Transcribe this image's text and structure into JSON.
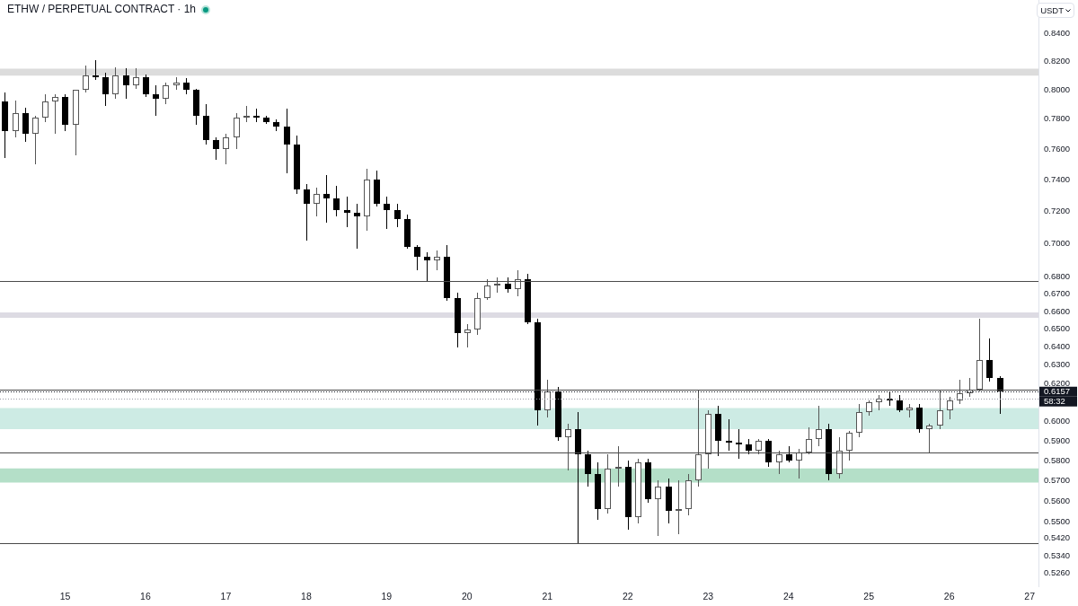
{
  "chart_data": {
    "type": "candlestick",
    "title": "ETHW / PERPETUAL CONTRACT · 1h",
    "ylabel": "USDT",
    "x": [
      14.25,
      14.375,
      14.5,
      14.625,
      14.75,
      14.875,
      15,
      15.125,
      15.25,
      15.375,
      15.5,
      15.625,
      15.75,
      15.875,
      16,
      16.125,
      16.25,
      16.375,
      16.5,
      16.625,
      16.75,
      16.875,
      17,
      17.125,
      17.25,
      17.375,
      17.5,
      17.625,
      17.75,
      17.875,
      18,
      18.125,
      18.25,
      18.375,
      18.5,
      18.625,
      18.75,
      18.875,
      19,
      19.125,
      19.25,
      19.375,
      19.5,
      19.625,
      19.75,
      19.875,
      20,
      20.125,
      20.25,
      20.375,
      20.5,
      20.625,
      20.75,
      20.875,
      21,
      21.125,
      21.25,
      21.375,
      21.5,
      21.625,
      21.75,
      21.875,
      22,
      22.125,
      22.25,
      22.375,
      22.5,
      22.625,
      22.75,
      22.875,
      23,
      23.125,
      23.25,
      23.375,
      23.5,
      23.625,
      23.75,
      23.875,
      24,
      24.125,
      24.25,
      24.375,
      24.5,
      24.625,
      24.75,
      24.875,
      25,
      25.125,
      25.25,
      25.375,
      25.5,
      25.625,
      25.75,
      25.875,
      26,
      26.125,
      26.25,
      26.375,
      26.5,
      26.625
    ],
    "ohlc": [
      [
        0.792,
        0.798,
        0.754,
        0.772
      ],
      [
        0.772,
        0.793,
        0.768,
        0.784
      ],
      [
        0.784,
        0.788,
        0.765,
        0.77
      ],
      [
        0.77,
        0.782,
        0.75,
        0.781
      ],
      [
        0.781,
        0.797,
        0.778,
        0.792
      ],
      [
        0.792,
        0.797,
        0.77,
        0.795
      ],
      [
        0.795,
        0.797,
        0.772,
        0.776
      ],
      [
        0.776,
        0.8,
        0.756,
        0.8
      ],
      [
        0.8,
        0.817,
        0.798,
        0.81
      ],
      [
        0.81,
        0.821,
        0.807,
        0.809
      ],
      [
        0.809,
        0.812,
        0.789,
        0.797
      ],
      [
        0.797,
        0.816,
        0.794,
        0.81
      ],
      [
        0.81,
        0.815,
        0.794,
        0.803
      ],
      [
        0.803,
        0.815,
        0.801,
        0.809
      ],
      [
        0.809,
        0.811,
        0.795,
        0.797
      ],
      [
        0.797,
        0.803,
        0.782,
        0.794
      ],
      [
        0.794,
        0.805,
        0.79,
        0.803
      ],
      [
        0.803,
        0.809,
        0.8,
        0.805
      ],
      [
        0.805,
        0.808,
        0.797,
        0.8
      ],
      [
        0.8,
        0.801,
        0.776,
        0.782
      ],
      [
        0.782,
        0.79,
        0.763,
        0.766
      ],
      [
        0.766,
        0.768,
        0.753,
        0.76
      ],
      [
        0.76,
        0.77,
        0.75,
        0.768
      ],
      [
        0.768,
        0.784,
        0.76,
        0.781
      ],
      [
        0.781,
        0.789,
        0.778,
        0.782
      ],
      [
        0.782,
        0.787,
        0.778,
        0.781
      ],
      [
        0.781,
        0.782,
        0.777,
        0.778
      ],
      [
        0.778,
        0.78,
        0.772,
        0.775
      ],
      [
        0.775,
        0.787,
        0.744,
        0.763
      ],
      [
        0.763,
        0.769,
        0.731,
        0.734
      ],
      [
        0.734,
        0.737,
        0.702,
        0.725
      ],
      [
        0.725,
        0.735,
        0.717,
        0.731
      ],
      [
        0.731,
        0.743,
        0.713,
        0.728
      ],
      [
        0.728,
        0.736,
        0.717,
        0.721
      ],
      [
        0.721,
        0.729,
        0.71,
        0.719
      ],
      [
        0.719,
        0.725,
        0.697,
        0.717
      ],
      [
        0.717,
        0.747,
        0.708,
        0.74
      ],
      [
        0.74,
        0.746,
        0.723,
        0.725
      ],
      [
        0.725,
        0.729,
        0.709,
        0.721
      ],
      [
        0.721,
        0.725,
        0.71,
        0.715
      ],
      [
        0.715,
        0.718,
        0.697,
        0.698
      ],
      [
        0.698,
        0.699,
        0.684,
        0.692
      ],
      [
        0.692,
        0.695,
        0.677,
        0.69
      ],
      [
        0.69,
        0.696,
        0.684,
        0.692
      ],
      [
        0.692,
        0.699,
        0.666,
        0.668
      ],
      [
        0.668,
        0.671,
        0.64,
        0.648
      ],
      [
        0.648,
        0.653,
        0.64,
        0.65
      ],
      [
        0.65,
        0.671,
        0.647,
        0.668
      ],
      [
        0.668,
        0.679,
        0.667,
        0.675
      ],
      [
        0.675,
        0.68,
        0.671,
        0.676
      ],
      [
        0.676,
        0.68,
        0.671,
        0.673
      ],
      [
        0.673,
        0.684,
        0.669,
        0.679
      ],
      [
        0.679,
        0.682,
        0.653,
        0.654
      ],
      [
        0.654,
        0.656,
        0.598,
        0.606
      ],
      [
        0.606,
        0.622,
        0.602,
        0.616
      ],
      [
        0.616,
        0.618,
        0.59,
        0.592
      ],
      [
        0.592,
        0.599,
        0.575,
        0.596
      ],
      [
        0.596,
        0.605,
        0.54,
        0.583
      ],
      [
        0.583,
        0.585,
        0.567,
        0.573
      ],
      [
        0.573,
        0.579,
        0.551,
        0.556
      ],
      [
        0.556,
        0.583,
        0.554,
        0.576
      ],
      [
        0.576,
        0.587,
        0.567,
        0.577
      ],
      [
        0.577,
        0.58,
        0.546,
        0.552
      ],
      [
        0.552,
        0.581,
        0.549,
        0.579
      ],
      [
        0.579,
        0.581,
        0.559,
        0.561
      ],
      [
        0.561,
        0.57,
        0.543,
        0.567
      ],
      [
        0.567,
        0.571,
        0.549,
        0.555
      ],
      [
        0.555,
        0.57,
        0.544,
        0.556
      ],
      [
        0.556,
        0.573,
        0.553,
        0.57
      ],
      [
        0.57,
        0.617,
        0.567,
        0.583
      ],
      [
        0.583,
        0.606,
        0.576,
        0.604
      ],
      [
        0.604,
        0.608,
        0.582,
        0.59
      ],
      [
        0.59,
        0.601,
        0.585,
        0.589
      ],
      [
        0.589,
        0.596,
        0.581,
        0.588
      ],
      [
        0.588,
        0.591,
        0.583,
        0.585
      ],
      [
        0.585,
        0.591,
        0.583,
        0.59
      ],
      [
        0.59,
        0.591,
        0.577,
        0.579
      ],
      [
        0.579,
        0.585,
        0.573,
        0.583
      ],
      [
        0.583,
        0.587,
        0.579,
        0.58
      ],
      [
        0.58,
        0.586,
        0.571,
        0.584
      ],
      [
        0.584,
        0.597,
        0.583,
        0.591
      ],
      [
        0.591,
        0.608,
        0.587,
        0.596
      ],
      [
        0.596,
        0.599,
        0.57,
        0.573
      ],
      [
        0.573,
        0.592,
        0.571,
        0.585
      ],
      [
        0.585,
        0.595,
        0.58,
        0.594
      ],
      [
        0.594,
        0.609,
        0.592,
        0.605
      ],
      [
        0.605,
        0.611,
        0.603,
        0.61
      ],
      [
        0.61,
        0.614,
        0.606,
        0.612
      ],
      [
        0.612,
        0.616,
        0.608,
        0.611
      ],
      [
        0.611,
        0.614,
        0.605,
        0.606
      ],
      [
        0.606,
        0.609,
        0.602,
        0.607
      ],
      [
        0.607,
        0.609,
        0.594,
        0.596
      ],
      [
        0.596,
        0.599,
        0.584,
        0.598
      ],
      [
        0.598,
        0.617,
        0.596,
        0.606
      ],
      [
        0.606,
        0.613,
        0.601,
        0.611
      ],
      [
        0.611,
        0.622,
        0.609,
        0.615
      ],
      [
        0.615,
        0.623,
        0.613,
        0.617
      ],
      [
        0.617,
        0.656,
        0.616,
        0.633
      ],
      [
        0.633,
        0.645,
        0.621,
        0.623
      ],
      [
        0.623,
        0.624,
        0.604,
        0.6157
      ]
    ],
    "colors": [
      "#000000",
      "#555555",
      "#000000",
      "#555555",
      "#555555",
      "#555555",
      "#000000",
      "#555555",
      "#555555",
      "#000000",
      "#000000",
      "#555555",
      "#000000",
      "#555555",
      "#000000",
      "#000000",
      "#555555",
      "#555555",
      "#000000",
      "#000000",
      "#000000",
      "#000000",
      "#555555",
      "#555555",
      "#555555",
      "#000000",
      "#000000",
      "#000000",
      "#000000",
      "#000000",
      "#000000",
      "#555555",
      "#000000",
      "#000000",
      "#000000",
      "#000000",
      "#555555",
      "#000000",
      "#000000",
      "#000000",
      "#000000",
      "#000000",
      "#000000",
      "#555555",
      "#000000",
      "#000000",
      "#555555",
      "#555555",
      "#555555",
      "#555555",
      "#000000",
      "#555555",
      "#000000",
      "#000000",
      "#555555",
      "#000000",
      "#555555",
      "#000000",
      "#000000",
      "#000000",
      "#555555",
      "#555555",
      "#000000",
      "#555555",
      "#000000",
      "#555555",
      "#000000",
      "#555555",
      "#555555",
      "#555555",
      "#555555",
      "#000000",
      "#000000",
      "#000000",
      "#000000",
      "#555555",
      "#000000",
      "#555555",
      "#000000",
      "#555555",
      "#555555",
      "#555555",
      "#000000",
      "#555555",
      "#555555",
      "#555555",
      "#555555",
      "#555555",
      "#000000",
      "#000000",
      "#555555",
      "#000000",
      "#555555",
      "#555555",
      "#555555",
      "#555555",
      "#555555",
      "#555555",
      "#000000",
      "#000000"
    ],
    "xlim": [
      14.19,
      27.11
    ],
    "xticks": [
      15,
      16,
      17,
      18,
      19,
      20,
      21,
      22,
      23,
      24,
      25,
      26,
      27
    ],
    "ylim": [
      0.52,
      0.865
    ],
    "yticks": [
      {
        "value": 0.84,
        "label": "0.8400"
      },
      {
        "value": 0.82,
        "label": "0.8200"
      },
      {
        "value": 0.8,
        "label": "0.8000"
      },
      {
        "value": 0.78,
        "label": "0.7800"
      },
      {
        "value": 0.76,
        "label": "0.7600"
      },
      {
        "value": 0.74,
        "label": "0.7400"
      },
      {
        "value": 0.72,
        "label": "0.7200"
      },
      {
        "value": 0.7,
        "label": "0.7000"
      },
      {
        "value": 0.68,
        "label": "0.6800"
      },
      {
        "value": 0.67,
        "label": "0.6700"
      },
      {
        "value": 0.66,
        "label": "0.6600"
      },
      {
        "value": 0.65,
        "label": "0.6500"
      },
      {
        "value": 0.64,
        "label": "0.6400"
      },
      {
        "value": 0.63,
        "label": "0.6300"
      },
      {
        "value": 0.62,
        "label": "0.6200"
      },
      {
        "value": 0.6,
        "label": "0.6000"
      },
      {
        "value": 0.59,
        "label": "0.5900"
      },
      {
        "value": 0.58,
        "label": "0.5800"
      },
      {
        "value": 0.57,
        "label": "0.5700"
      },
      {
        "value": 0.56,
        "label": "0.5600"
      },
      {
        "value": 0.55,
        "label": "0.5500"
      },
      {
        "value": 0.542,
        "label": "0.5420"
      },
      {
        "value": 0.534,
        "label": "0.5340"
      },
      {
        "value": 0.526,
        "label": "0.5260"
      }
    ],
    "log": true,
    "ref_lines": [
      {
        "axis": "y",
        "value": 0.678,
        "color": "#4a4a4a"
      },
      {
        "axis": "y",
        "value": 0.617,
        "color": "#4a4a4a"
      },
      {
        "axis": "y",
        "value": 0.6157,
        "label": "0.6157",
        "color": "#131722",
        "line_style": "dotted"
      },
      {
        "axis": "y",
        "value": 0.612,
        "color": "#9598a1",
        "line_style": "dotted"
      },
      {
        "axis": "y",
        "value": 0.584,
        "color": "#4a4a4a"
      },
      {
        "axis": "y",
        "value": 0.54,
        "color": "#4a4a4a"
      }
    ],
    "bands": [
      {
        "axis": "y",
        "from": 0.81,
        "to": 0.815,
        "color": "#dcdcdc"
      },
      {
        "axis": "y",
        "from": 0.6565,
        "to": 0.6595,
        "color": "#dddbe3"
      },
      {
        "axis": "y",
        "from": 0.596,
        "to": 0.607,
        "color": "#cdebe4"
      },
      {
        "axis": "y",
        "from": 0.569,
        "to": 0.576,
        "color": "#b4dfc8"
      }
    ],
    "annotations": [
      "58:32"
    ]
  }
}
